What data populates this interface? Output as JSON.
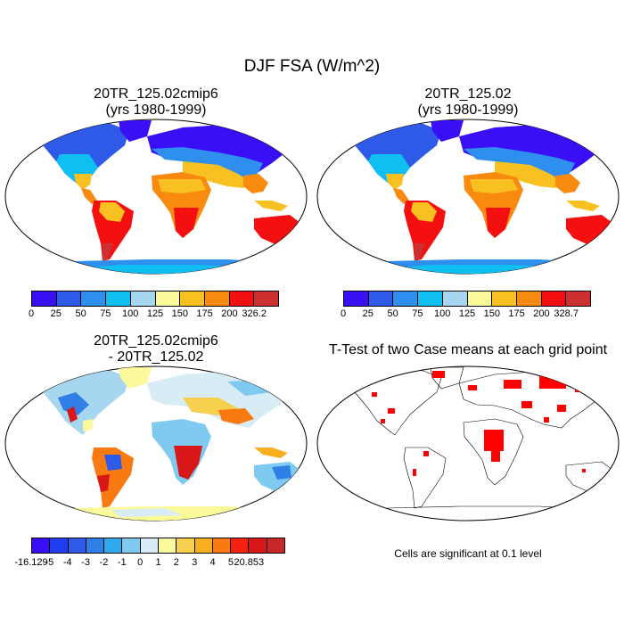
{
  "figure_title": "DJF FSA (W/m^2)",
  "panels": [
    {
      "title_line1": "20TR_125.02cmip6",
      "title_line2": "(yrs 1980-1999)"
    },
    {
      "title_line1": "20TR_125.02",
      "title_line2": "(yrs 1980-1999)"
    },
    {
      "title_line1": "20TR_125.02cmip6",
      "title_line2": "- 20TR_125.02"
    },
    {
      "title_line1": "T-Test of two Case means at each grid point",
      "title_line2": ""
    }
  ],
  "colorbars": {
    "abs_colors": [
      "#3a0ff5",
      "#2f5ae8",
      "#2f8fef",
      "#0fbff2",
      "#a6d6f0",
      "#fafa9a",
      "#f8c020",
      "#f88a10",
      "#f41010",
      "#cc3030"
    ],
    "cb1_ticks": [
      "0",
      "25",
      "50",
      "75",
      "100",
      "125",
      "150",
      "175",
      "200",
      "326.2"
    ],
    "cb2_ticks": [
      "0",
      "25",
      "50",
      "75",
      "100",
      "125",
      "150",
      "175",
      "200",
      "328.7"
    ],
    "diff_colors": [
      "#3a0ff5",
      "#1e3cf0",
      "#2f5ae8",
      "#2f7fe6",
      "#2fa8ec",
      "#7fcaf0",
      "#d8ecf6",
      "#fafa9a",
      "#f8d050",
      "#f8b020",
      "#f87a10",
      "#f42010",
      "#d81818",
      "#c82828"
    ],
    "cb3_ticks": [
      "-16.129",
      "-5",
      "-4",
      "-3",
      "-2",
      "-1",
      "0",
      "1",
      "2",
      "3",
      "4",
      "5",
      "20.853"
    ]
  },
  "note": "Cells are significant at 0.1 level"
}
